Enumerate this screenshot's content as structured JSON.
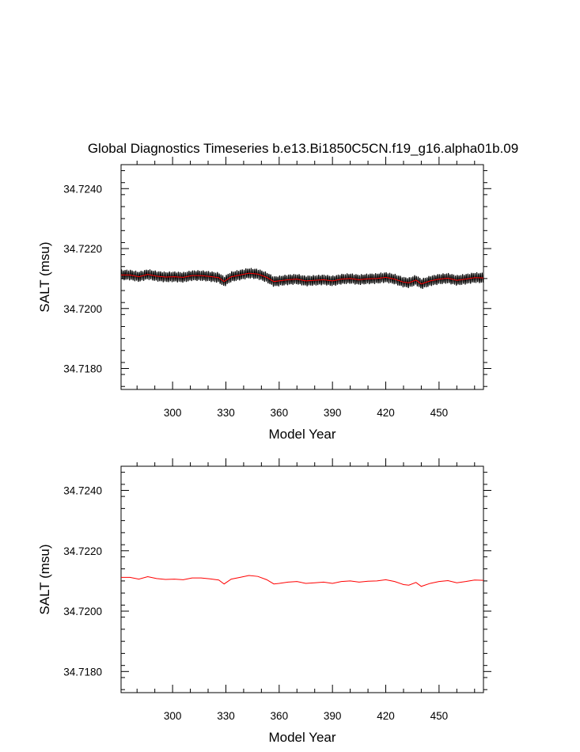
{
  "title": "Global Diagnostics Timeseries b.e13.Bi1850C5CN.f19_g16.alpha01b.09",
  "chart_data": [
    {
      "type": "line",
      "title": "Global Diagnostics Timeseries b.e13.Bi1850C5CN.f19_g16.alpha01b.09",
      "xlabel": "Model Year",
      "ylabel": "SALT (msu)",
      "xlim": [
        271,
        475
      ],
      "ylim": [
        34.7173,
        34.7248
      ],
      "xticks": [
        300,
        330,
        360,
        390,
        420,
        450
      ],
      "xtick_labels": [
        "300",
        "330",
        "360",
        "390",
        "420",
        "450"
      ],
      "yticks": [
        34.718,
        34.72,
        34.722,
        34.724
      ],
      "ytick_labels": [
        "34.7180",
        "34.7200",
        "34.7220",
        "34.7240"
      ],
      "grid": false,
      "monthly_band_halfwidth": 0.00018,
      "series": [
        {
          "kind": "annual-mean",
          "color": "#ff0000",
          "x": [
            271,
            276,
            281,
            286,
            291,
            296,
            301,
            306,
            311,
            316,
            321,
            326,
            329,
            333,
            338,
            343,
            348,
            353,
            357,
            360,
            365,
            370,
            375,
            380,
            385,
            390,
            395,
            400,
            405,
            410,
            415,
            420,
            425,
            430,
            433,
            437,
            440,
            445,
            450,
            455,
            460,
            465,
            470,
            475
          ],
          "y": [
            34.72112,
            34.72112,
            34.72106,
            34.72114,
            34.72108,
            34.72105,
            34.72106,
            34.72104,
            34.7211,
            34.7211,
            34.72107,
            34.72103,
            34.7209,
            34.72106,
            34.72112,
            34.72118,
            34.72115,
            34.72104,
            34.7209,
            34.72092,
            34.72096,
            34.72098,
            34.72092,
            34.72094,
            34.72096,
            34.72092,
            34.72098,
            34.721,
            34.72096,
            34.72099,
            34.721,
            34.72104,
            34.72098,
            34.72088,
            34.72086,
            34.72095,
            34.72082,
            34.72092,
            34.72098,
            34.72101,
            34.72094,
            34.72098,
            34.72103,
            34.72102
          ]
        }
      ]
    },
    {
      "type": "line",
      "title": "",
      "xlabel": "Model Year",
      "ylabel": "SALT (msu)",
      "xlim": [
        271,
        475
      ],
      "ylim": [
        34.7173,
        34.7248
      ],
      "xticks": [
        300,
        330,
        360,
        390,
        420,
        450
      ],
      "xtick_labels": [
        "300",
        "330",
        "360",
        "390",
        "420",
        "450"
      ],
      "yticks": [
        34.718,
        34.72,
        34.722,
        34.724
      ],
      "ytick_labels": [
        "34.7180",
        "34.7200",
        "34.7220",
        "34.7240"
      ],
      "grid": false,
      "series": [
        {
          "kind": "annual-mean",
          "color": "#ff0000",
          "x": [
            271,
            276,
            281,
            286,
            291,
            296,
            301,
            306,
            311,
            316,
            321,
            326,
            329,
            333,
            338,
            343,
            348,
            353,
            357,
            360,
            365,
            370,
            375,
            380,
            385,
            390,
            395,
            400,
            405,
            410,
            415,
            420,
            425,
            430,
            433,
            437,
            440,
            445,
            450,
            455,
            460,
            465,
            470,
            475
          ],
          "y": [
            34.72112,
            34.72112,
            34.72106,
            34.72114,
            34.72108,
            34.72105,
            34.72106,
            34.72104,
            34.7211,
            34.7211,
            34.72107,
            34.72103,
            34.7209,
            34.72106,
            34.72112,
            34.72118,
            34.72115,
            34.72104,
            34.7209,
            34.72092,
            34.72096,
            34.72098,
            34.72092,
            34.72094,
            34.72096,
            34.72092,
            34.72098,
            34.721,
            34.72096,
            34.72099,
            34.721,
            34.72104,
            34.72098,
            34.72088,
            34.72086,
            34.72095,
            34.72082,
            34.72092,
            34.72098,
            34.72101,
            34.72094,
            34.72098,
            34.72103,
            34.72102
          ]
        }
      ]
    }
  ]
}
